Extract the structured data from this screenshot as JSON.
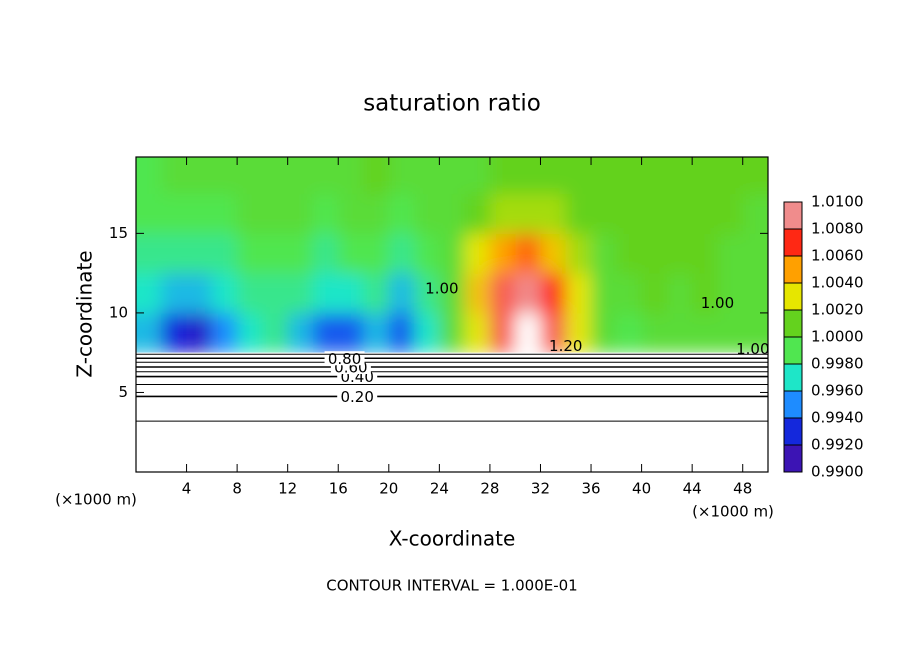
{
  "chart_data": {
    "type": "contour",
    "title": "saturation ratio",
    "xlabel": "X-coordinate",
    "ylabel": "Z-coordinate",
    "x_unit_left": "(×1000 m)",
    "x_unit_right": "(×1000 m)",
    "footnote": "CONTOUR INTERVAL = 1.000E-01",
    "xlim": [
      0,
      50
    ],
    "ylim": [
      0,
      19.8
    ],
    "xticks": [
      4,
      8,
      12,
      16,
      20,
      24,
      28,
      32,
      36,
      40,
      44,
      48
    ],
    "yticks": [
      5,
      10,
      15
    ],
    "field": {
      "x": [
        1,
        3,
        5,
        7,
        9,
        11,
        13,
        15,
        17,
        19,
        21,
        23,
        25,
        27,
        29,
        31,
        33,
        35,
        37,
        39,
        41,
        43,
        45,
        47,
        49
      ],
      "z": [
        8.75,
        11.25,
        13.75,
        16.25,
        18.75
      ],
      "values": [
        [
          0.996,
          0.993,
          0.992,
          0.995,
          0.997,
          0.998,
          0.996,
          0.994,
          0.994,
          0.996,
          0.994,
          0.997,
          1.0,
          1.003,
          1.008,
          1.012,
          1.008,
          1.003,
          1.0,
          0.999,
          1.0,
          1.0,
          1.0,
          1.0,
          1.0
        ],
        [
          0.997,
          0.996,
          0.996,
          0.997,
          0.998,
          0.998,
          0.998,
          0.997,
          0.997,
          0.998,
          0.996,
          0.998,
          1.0,
          1.004,
          1.008,
          1.009,
          1.007,
          1.003,
          1.0,
          1.0,
          1.001,
          1.0,
          1.001,
          1.0,
          1.0
        ],
        [
          0.998,
          0.998,
          0.998,
          0.998,
          0.999,
          0.999,
          0.999,
          0.998,
          0.999,
          0.999,
          0.998,
          0.999,
          1.0,
          1.003,
          1.005,
          1.006,
          1.004,
          1.002,
          1.0,
          1.001,
          1.001,
          1.001,
          1.001,
          1.0,
          1.0
        ],
        [
          0.999,
          0.999,
          0.999,
          0.999,
          1.0,
          1.0,
          1.0,
          0.999,
          1.0,
          1.0,
          0.999,
          1.0,
          1.0,
          1.001,
          1.002,
          1.002,
          1.002,
          1.001,
          1.001,
          1.001,
          1.001,
          1.001,
          1.001,
          1.001,
          1.0
        ],
        [
          0.999,
          1.0,
          1.0,
          1.0,
          1.0,
          1.0,
          1.0,
          1.0,
          1.0,
          1.001,
          1.0,
          1.0,
          1.0,
          1.0,
          1.001,
          1.001,
          1.001,
          1.001,
          1.001,
          1.001,
          1.001,
          1.001,
          1.001,
          1.001,
          1.001
        ]
      ]
    },
    "contours": [
      {
        "level": 0.1,
        "z": 3.2
      },
      {
        "level": 0.2,
        "z": 4.75,
        "label": "0.20",
        "label_x": 17.5
      },
      {
        "level": 0.3,
        "z": 5.5
      },
      {
        "level": 0.4,
        "z": 6.0,
        "label": "0.40",
        "label_x": 17.5
      },
      {
        "level": 0.5,
        "z": 6.3
      },
      {
        "level": 0.6,
        "z": 6.6,
        "label": "0.60",
        "label_x": 17
      },
      {
        "level": 0.7,
        "z": 6.9
      },
      {
        "level": 0.8,
        "z": 7.15,
        "label": "0.80",
        "label_x": 16.5
      },
      {
        "level": 0.9,
        "z": 7.4
      }
    ],
    "annotations": [
      {
        "text": "1.20",
        "x": 34,
        "z": 7.9
      },
      {
        "text": "1.00",
        "x": 24.2,
        "z": 11.5
      },
      {
        "text": "1.00",
        "x": 46,
        "z": 10.6
      },
      {
        "text": "1.00",
        "x": 48.8,
        "z": 7.7
      }
    ],
    "colorbar": {
      "ticks": [
        {
          "value": 0.99,
          "label": "0.9900"
        },
        {
          "value": 0.992,
          "label": "0.9920"
        },
        {
          "value": 0.994,
          "label": "0.9940"
        },
        {
          "value": 0.996,
          "label": "0.9960"
        },
        {
          "value": 0.998,
          "label": "0.9980"
        },
        {
          "value": 1.0,
          "label": "1.0000"
        },
        {
          "value": 1.002,
          "label": "1.0020"
        },
        {
          "value": 1.004,
          "label": "1.0040"
        },
        {
          "value": 1.006,
          "label": "1.0060"
        },
        {
          "value": 1.008,
          "label": "1.0080"
        },
        {
          "value": 1.01,
          "label": "1.0100"
        }
      ],
      "colors": [
        "#3c14b4",
        "#1428dc",
        "#1e8cff",
        "#1ee6c8",
        "#50e650",
        "#64d21e",
        "#e6e600",
        "#ffa000",
        "#ff2814",
        "#f08c8c"
      ]
    }
  }
}
